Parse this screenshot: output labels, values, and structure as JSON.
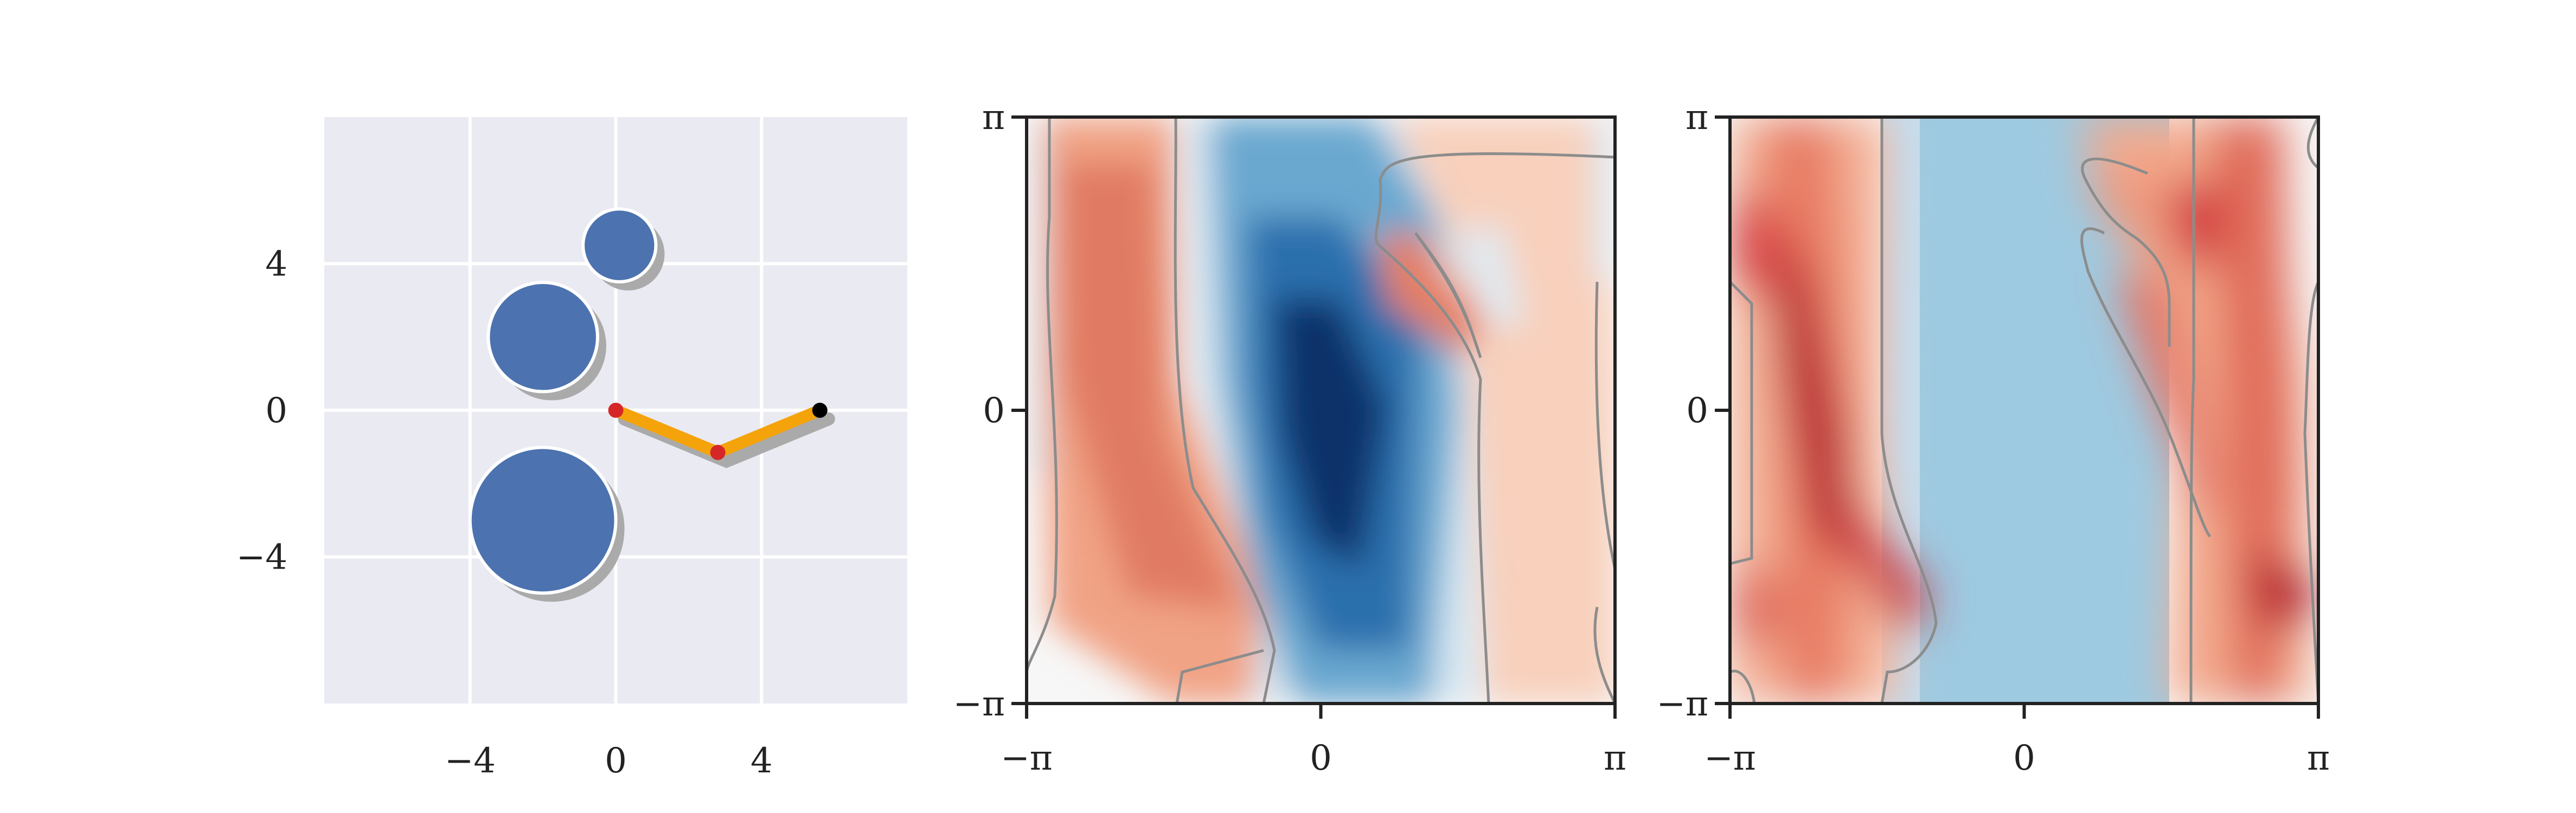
{
  "chart_data": [
    {
      "type": "scatter",
      "panel": "arm-workspace",
      "title": "",
      "xlabel": "",
      "ylabel": "",
      "xlim": [
        -8,
        8
      ],
      "ylim": [
        -8,
        8
      ],
      "grid": true,
      "x_ticks": [
        {
          "value": -4,
          "label": "−4"
        },
        {
          "value": 0,
          "label": "0"
        },
        {
          "value": 4,
          "label": "4"
        }
      ],
      "y_ticks": [
        {
          "value": 4,
          "label": "4"
        },
        {
          "value": 0,
          "label": "0"
        },
        {
          "value": -4,
          "label": "−4"
        }
      ],
      "obstacles": [
        {
          "x": 0.1,
          "y": 4.5,
          "r": 1.0
        },
        {
          "x": -2.0,
          "y": 2.0,
          "r": 1.5
        },
        {
          "x": -2.0,
          "y": -3.0,
          "r": 2.0
        }
      ],
      "arm_joints": [
        {
          "x": 0.0,
          "y": 0.0
        },
        {
          "x": 2.8,
          "y": -1.15
        },
        {
          "x": 5.6,
          "y": 0.0
        }
      ],
      "colors": {
        "background": "#eaeaf2",
        "obstacle": "#4c72b0",
        "arm": "#f5a30a",
        "joint": "#d62728",
        "end_effector": "#000000",
        "shadow": "#aaaaaa"
      }
    },
    {
      "type": "heatmap",
      "panel": "configuration-space-1",
      "title": "",
      "xlim": [
        -3.14159,
        3.14159
      ],
      "ylim": [
        -3.14159,
        3.14159
      ],
      "colormap": "RdBu_r",
      "contour_color": "#8c8c8c",
      "x_ticks": [
        {
          "value": -3.14159,
          "label": "−π"
        },
        {
          "value": 0,
          "label": "0"
        },
        {
          "value": 3.14159,
          "label": "π"
        }
      ],
      "y_ticks": [
        {
          "value": 3.14159,
          "label": "π"
        },
        {
          "value": 0,
          "label": "0"
        },
        {
          "value": -3.14159,
          "label": "−π"
        }
      ]
    },
    {
      "type": "heatmap",
      "panel": "configuration-space-2",
      "title": "",
      "xlim": [
        -3.14159,
        3.14159
      ],
      "ylim": [
        -3.14159,
        3.14159
      ],
      "colormap": "RdBu_r",
      "contour_color": "#8c8c8c",
      "x_ticks": [
        {
          "value": -3.14159,
          "label": "−π"
        },
        {
          "value": 0,
          "label": "0"
        },
        {
          "value": 3.14159,
          "label": "π"
        }
      ],
      "y_ticks": [
        {
          "value": 3.14159,
          "label": "π"
        },
        {
          "value": 0,
          "label": "0"
        },
        {
          "value": -3.14159,
          "label": "−π"
        }
      ]
    }
  ]
}
